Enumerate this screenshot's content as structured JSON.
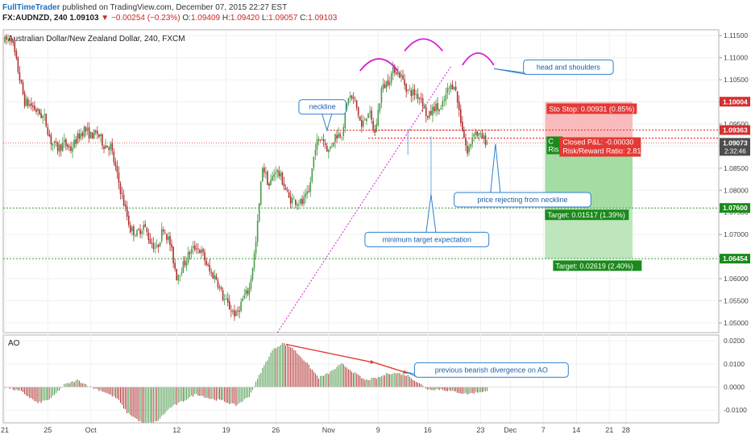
{
  "header": {
    "brand": "FullTimeTrader",
    "published_text": "published on TradingView.com, December 07, 2015 22:27 EST",
    "symbol": "FX:AUDNZD, 240",
    "last": "1.09103",
    "change": "−0.00254 (−0.23%)",
    "open_label": "O:",
    "open": "1.09409",
    "high_label": "H:",
    "high": "1.09420",
    "low_label": "L:",
    "low": "1.09057",
    "close_label": "C:",
    "close": "1.09103"
  },
  "colors": {
    "up": "#4a9a4a",
    "down": "#b03030",
    "grid": "#f0f0f0",
    "dotted_green": "#2e9e2e",
    "dotted_red": "#e53935",
    "pink": "#d61fd6",
    "annotation_border": "#2c7fd1",
    "annotation_text": "#1f5fa8",
    "stop_zone": "#f8b4b4",
    "target_zone": "#b6e3b6",
    "current_price": "#e53935"
  },
  "chart_data": [
    {
      "type": "candlestick",
      "title": "Australian Dollar/New Zealand Dollar, 240, FXCM",
      "ylim": [
        1.0478,
        1.1163
      ],
      "y_ticks": [
        "1.11500",
        "1.11000",
        "1.10500",
        "1.10000",
        "1.09500",
        "1.09000",
        "1.08500",
        "1.08000",
        "1.07500",
        "1.07000",
        "1.06500",
        "1.06000",
        "1.05500",
        "1.05000"
      ],
      "x_ticks": [
        "21",
        "25",
        "Oct",
        "12",
        "19",
        "26",
        "Nov",
        "9",
        "16",
        "23",
        "Dec",
        "7",
        "14",
        "21",
        "28"
      ],
      "path": [
        [
          0,
          1.1138
        ],
        [
          4,
          1.1146
        ],
        [
          8,
          1.1071
        ],
        [
          12,
          1.1
        ],
        [
          16,
          1.0992
        ],
        [
          20,
          1.0977
        ],
        [
          24,
          1.0963
        ],
        [
          28,
          1.091
        ],
        [
          32,
          1.0895
        ],
        [
          36,
          1.0906
        ],
        [
          40,
          1.0893
        ],
        [
          44,
          1.0919
        ],
        [
          48,
          1.0938
        ],
        [
          52,
          1.0924
        ],
        [
          56,
          1.0929
        ],
        [
          60,
          1.0903
        ],
        [
          64,
          1.0899
        ],
        [
          68,
          1.0832
        ],
        [
          72,
          1.0771
        ],
        [
          76,
          1.0712
        ],
        [
          80,
          1.0701
        ],
        [
          84,
          1.0721
        ],
        [
          88,
          1.0685
        ],
        [
          92,
          1.0667
        ],
        [
          96,
          1.0717
        ],
        [
          100,
          1.0679
        ],
        [
          104,
          1.0605
        ],
        [
          108,
          1.063
        ],
        [
          112,
          1.066
        ],
        [
          116,
          1.0674
        ],
        [
          120,
          1.0653
        ],
        [
          124,
          1.0615
        ],
        [
          128,
          1.0601
        ],
        [
          132,
          1.0558
        ],
        [
          136,
          1.0535
        ],
        [
          140,
          1.0517
        ],
        [
          144,
          1.0553
        ],
        [
          148,
          1.0578
        ],
        [
          152,
          1.068
        ],
        [
          156,
          1.0856
        ],
        [
          160,
          1.081
        ],
        [
          164,
          1.0848
        ],
        [
          168,
          1.0822
        ],
        [
          172,
          1.0781
        ],
        [
          176,
          1.0776
        ],
        [
          180,
          1.0771
        ],
        [
          184,
          1.0793
        ],
        [
          188,
          1.0902
        ],
        [
          192,
          1.092
        ],
        [
          196,
          1.0888
        ],
        [
          200,
          1.0924
        ],
        [
          204,
          1.093
        ],
        [
          208,
          1.1013
        ],
        [
          212,
          1.1001
        ],
        [
          216,
          1.0942
        ],
        [
          220,
          1.0981
        ],
        [
          224,
          1.0928
        ],
        [
          228,
          1.1028
        ],
        [
          232,
          1.1048
        ],
        [
          236,
          1.1076
        ],
        [
          240,
          1.1057
        ],
        [
          244,
          1.1025
        ],
        [
          248,
          1.1019
        ],
        [
          252,
          1.101
        ],
        [
          256,
          1.0962
        ],
        [
          260,
          1.0989
        ],
        [
          264,
          1.0981
        ],
        [
          268,
          1.1025
        ],
        [
          272,
          1.1043
        ],
        [
          276,
          1.0959
        ],
        [
          280,
          1.0882
        ],
        [
          284,
          1.0935
        ],
        [
          288,
          1.092
        ],
        [
          292,
          1.091
        ]
      ],
      "current_price": {
        "value": 1.09073,
        "label": "1.09073",
        "countdown": "2:32:46"
      },
      "levels": [
        {
          "value": 1.10004,
          "label": "1.10004",
          "style": "red-flag"
        },
        {
          "value": 1.09363,
          "label": "1.09363",
          "style": "red-dotted"
        },
        {
          "value": 1.0918,
          "label": "",
          "style": "red-dotted"
        },
        {
          "value": 1.076,
          "label": "1.07600",
          "style": "green-dotted"
        },
        {
          "value": 1.06454,
          "label": "1.06454",
          "style": "green-dotted"
        }
      ],
      "trendline": {
        "p1": [
          165,
          1.0478
        ],
        "p2": [
          270,
          1.108
        ]
      },
      "neckline_span": {
        "x0": 195,
        "x1": 300
      },
      "neckline_tick": {
        "x": 244
      },
      "target_projection": {
        "x": 258,
        "y0": 1.0922,
        "y1": 1.076
      },
      "shoulder_arcs": [
        {
          "x0": 215,
          "x1": 238,
          "y": 1.107
        },
        {
          "x0": 242,
          "x1": 265,
          "y": 1.1115
        },
        {
          "x0": 277,
          "x1": 296,
          "y": 1.1083
        }
      ],
      "position": {
        "x0": 327,
        "x1": 380,
        "stop_top": 1.1,
        "entry": 1.0918,
        "target1": 1.076,
        "target2": 1.0645,
        "stop_label": "Sto Stop: 0.00931 (0.85%)",
        "closed_pnl": "Closed P&L: -0.00030",
        "rr": "Risk/Reward Ratio: 2.81",
        "target1_label": "Target: 0.01517 (1.39%)",
        "target2_label": "Target: 0.02619 (2.40%)",
        "hidden_label": "C",
        "hidden_label2": "Ris"
      },
      "annotations": [
        {
          "text": "neckline",
          "x": 178,
          "y": 1.1005,
          "pointer": [
            195,
            1.0936
          ]
        },
        {
          "text": "head and shoulders",
          "x": 314,
          "y": 1.1095,
          "pointer": [
            296,
            1.1075
          ]
        },
        {
          "text": "price rejecting from neckline",
          "x": 272,
          "y": 1.0795,
          "pointer": [
            297,
            1.0905
          ]
        },
        {
          "text": "minimum target expectation",
          "x": 218,
          "y": 1.0705,
          "pointer": [
            258,
            1.079
          ]
        }
      ]
    },
    {
      "type": "bar",
      "title": "AO",
      "ylim": [
        -0.0155,
        0.0225
      ],
      "y_ticks": [
        "0.0200",
        "0.0100",
        "0.0000",
        "-0.0100"
      ],
      "ao_keys": [
        [
          0,
          0.0
        ],
        [
          10,
          -0.002
        ],
        [
          20,
          -0.007
        ],
        [
          28,
          -0.005
        ],
        [
          36,
          0.001
        ],
        [
          44,
          0.003
        ],
        [
          52,
          0.0
        ],
        [
          60,
          -0.002
        ],
        [
          68,
          -0.005
        ],
        [
          74,
          -0.011
        ],
        [
          84,
          -0.016
        ],
        [
          92,
          -0.015
        ],
        [
          100,
          -0.009
        ],
        [
          108,
          -0.006
        ],
        [
          116,
          -0.003
        ],
        [
          124,
          -0.005
        ],
        [
          132,
          -0.006
        ],
        [
          140,
          -0.008
        ],
        [
          148,
          -0.004
        ],
        [
          156,
          0.008
        ],
        [
          162,
          0.016
        ],
        [
          168,
          0.019
        ],
        [
          174,
          0.017
        ],
        [
          182,
          0.011
        ],
        [
          190,
          0.004
        ],
        [
          196,
          0.006
        ],
        [
          204,
          0.01
        ],
        [
          212,
          0.006
        ],
        [
          218,
          0.003
        ],
        [
          226,
          0.004
        ],
        [
          232,
          0.006
        ],
        [
          238,
          0.006
        ],
        [
          244,
          0.005
        ],
        [
          250,
          0.002
        ],
        [
          256,
          -0.001
        ],
        [
          264,
          -0.001
        ],
        [
          272,
          -0.002
        ],
        [
          280,
          -0.003
        ],
        [
          288,
          -0.002
        ],
        [
          292,
          -0.002
        ]
      ],
      "divergence": {
        "p1": [
          170,
          0.0185
        ],
        "p2": [
          224,
          0.0105
        ],
        "p3": [
          244,
          0.006
        ]
      },
      "annotation": {
        "text": "previous bearish divergence on AO",
        "x": 248,
        "y": 0.0105,
        "pointer": [
          243,
          0.0065
        ]
      }
    }
  ]
}
